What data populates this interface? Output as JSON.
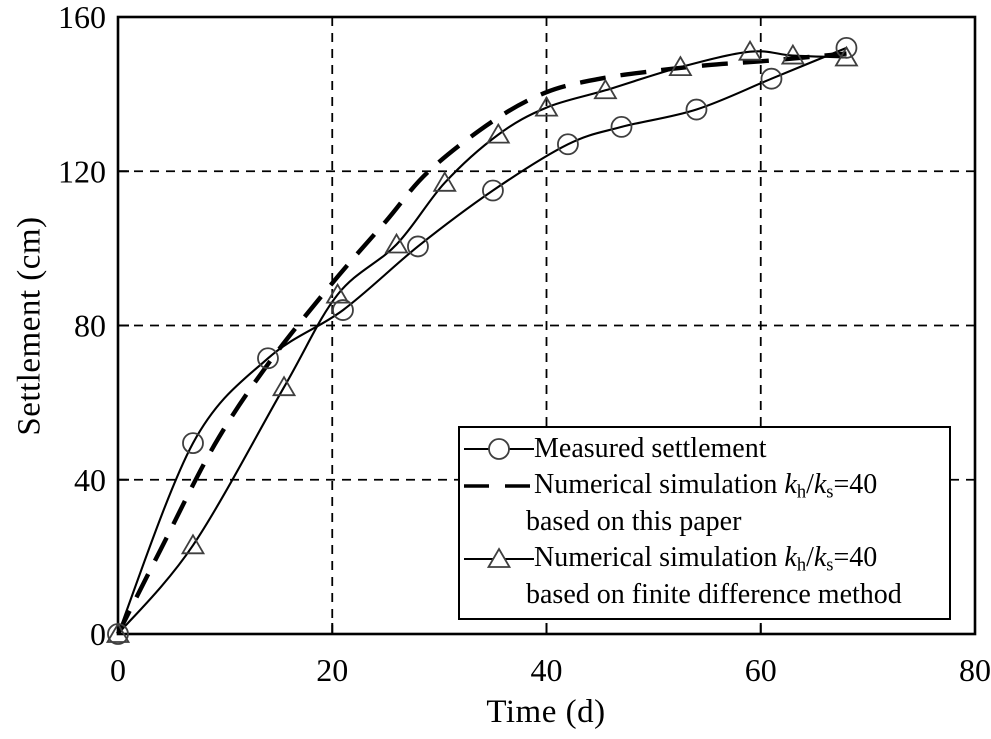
{
  "figure": {
    "background": "#ffffff",
    "ink_color": "#000000",
    "marker_color": "#3f3f3f"
  },
  "chart_data": {
    "type": "line",
    "title": "",
    "xlabel": "Time (d)",
    "ylabel": "Settlement (cm)",
    "xlim": [
      0,
      80
    ],
    "ylim": [
      0,
      160
    ],
    "x_ticks": [
      0,
      20,
      40,
      60,
      80
    ],
    "y_ticks": [
      0,
      40,
      80,
      120,
      160
    ],
    "grid": {
      "style": "dashed",
      "x_at": [
        20,
        40,
        60
      ],
      "y_at": [
        40,
        80,
        120
      ]
    },
    "legend_position": "inside-bottom-right",
    "series": [
      {
        "name": "Measured settlement",
        "line": "solid",
        "marker": "circle",
        "points": [
          [
            0,
            0
          ],
          [
            7,
            49.5
          ],
          [
            14,
            71.5
          ],
          [
            21,
            84
          ],
          [
            28,
            100.5
          ],
          [
            35,
            115
          ],
          [
            42,
            127
          ],
          [
            47,
            131.5
          ],
          [
            54,
            136
          ],
          [
            61,
            144
          ],
          [
            68,
            152
          ]
        ]
      },
      {
        "name": "Numerical simulation kh/ks=40 based on this paper",
        "line": "dashed",
        "marker": "none",
        "points": [
          [
            0,
            0
          ],
          [
            4,
            22
          ],
          [
            9,
            49
          ],
          [
            14,
            70
          ],
          [
            20,
            91
          ],
          [
            25,
            107
          ],
          [
            29,
            120
          ],
          [
            35,
            133
          ],
          [
            40,
            140.5
          ],
          [
            45,
            144
          ],
          [
            50,
            146
          ],
          [
            55,
            147.5
          ],
          [
            60,
            148.5
          ],
          [
            64,
            149.5
          ],
          [
            68,
            150.5
          ]
        ]
      },
      {
        "name": "Numerical simulation kh/ks=40 based on finite difference method",
        "line": "solid",
        "marker": "triangle",
        "points": [
          [
            0,
            0
          ],
          [
            7,
            23
          ],
          [
            15.5,
            64
          ],
          [
            20.5,
            88
          ],
          [
            26,
            101
          ],
          [
            30.5,
            117
          ],
          [
            35.5,
            129.5
          ],
          [
            40,
            136.5
          ],
          [
            45.5,
            141
          ],
          [
            52.5,
            147
          ],
          [
            59,
            151
          ],
          [
            63,
            150
          ],
          [
            68,
            149.5
          ]
        ]
      }
    ]
  },
  "legend": {
    "rows": [
      {
        "label": "Measured settlement"
      },
      {
        "prefix": "Numerical simulation ",
        "k1": "k",
        "sub1": "h",
        "slash": "/",
        "k2": "k",
        "sub2": "s",
        "eq": "=40"
      },
      {
        "label": "based on this paper"
      },
      {
        "prefix": "Numerical simulation ",
        "k1": "k",
        "sub1": "h",
        "slash": "/",
        "k2": "k",
        "sub2": "s",
        "eq": "=40"
      },
      {
        "label": "based on finite difference method"
      }
    ]
  }
}
